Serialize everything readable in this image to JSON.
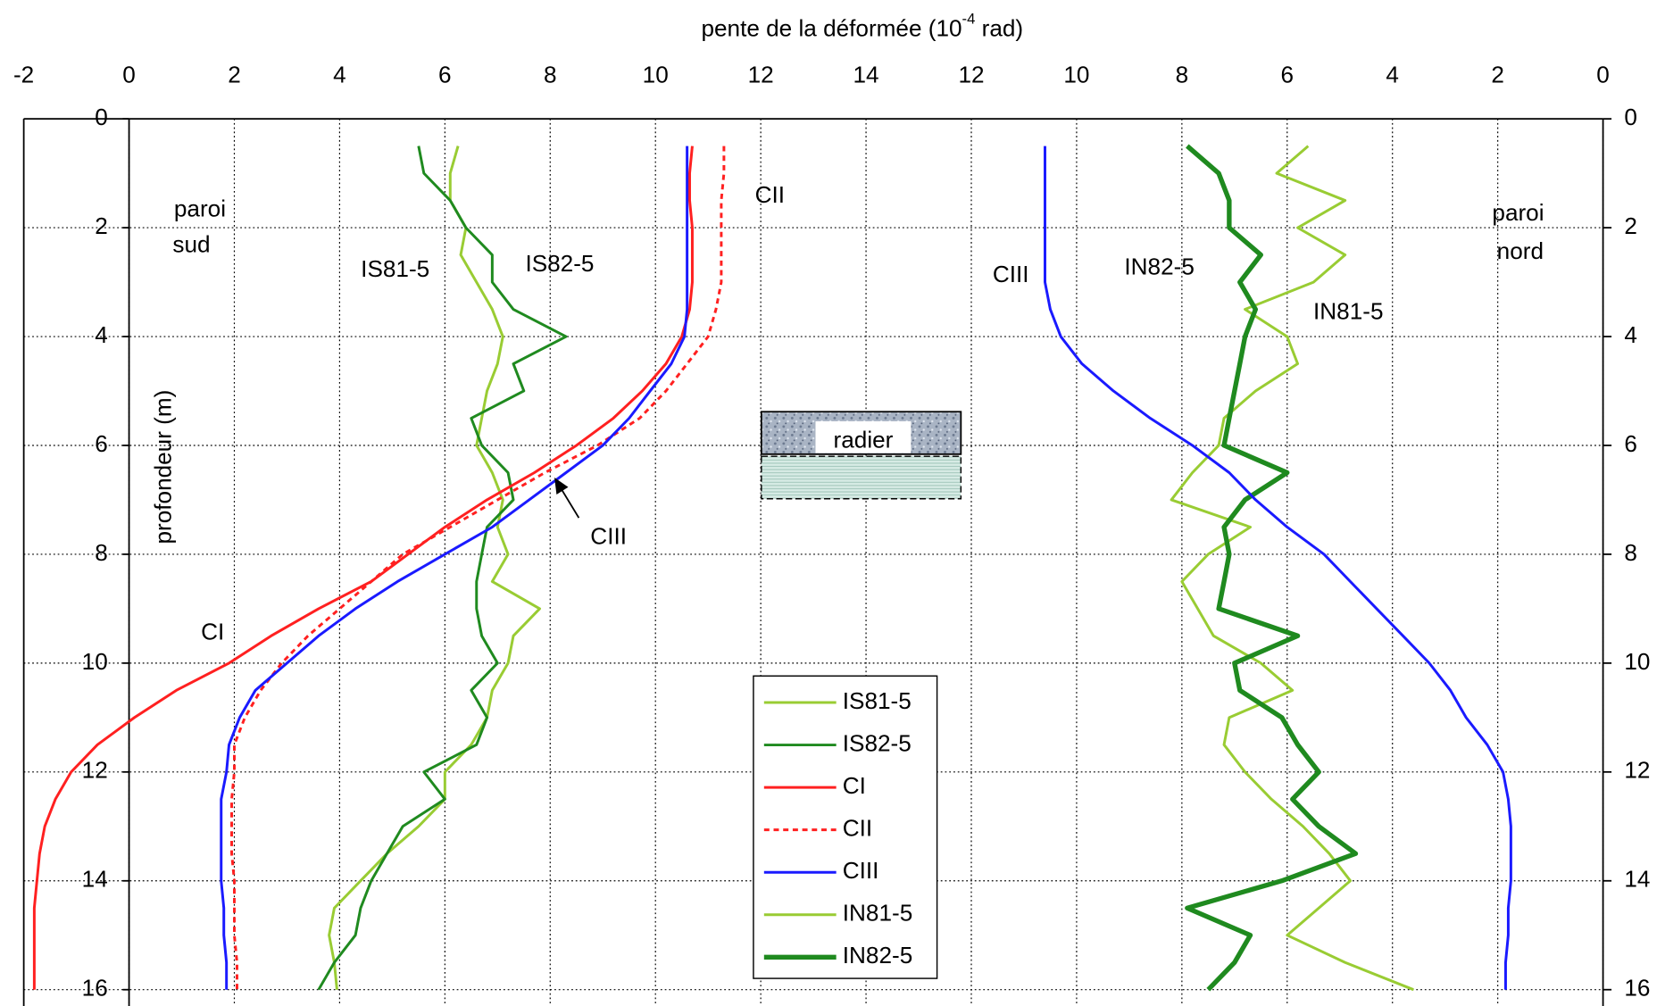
{
  "chart_data": {
    "type": "line",
    "title_parts": [
      "pente de la déformée (10",
      "-4",
      " rad)"
    ],
    "y_label": "profondeur (m)",
    "y": [
      0.5,
      1,
      1.5,
      2,
      2.5,
      3,
      3.5,
      4,
      4.5,
      5,
      5.5,
      6,
      6.5,
      7,
      7.5,
      8,
      8.5,
      9,
      9.5,
      10,
      10.5,
      11,
      11.5,
      12,
      12.5,
      13,
      13.5,
      14,
      14.5,
      15,
      15.5,
      16
    ],
    "ylim": [
      0,
      16.3
    ],
    "y_inverted": true,
    "yticks": [
      0,
      2,
      4,
      6,
      8,
      10,
      12,
      14,
      16
    ],
    "xlim": [
      -2,
      28
    ],
    "xticks": [
      -2,
      0,
      2,
      4,
      6,
      8,
      10,
      12,
      14
    ],
    "x2lim": [
      30,
      0
    ],
    "x2ticks": [
      12,
      10,
      8,
      6,
      4,
      2,
      0
    ],
    "grid": true,
    "legend": "bottom-center",
    "series": [
      {
        "name": "IS81-5",
        "color": "#99cc33",
        "axis": "x",
        "values": [
          6.25,
          6.1,
          6.1,
          6.4,
          6.3,
          6.6,
          6.9,
          7.1,
          7.0,
          6.8,
          6.7,
          6.6,
          6.9,
          7.1,
          7.0,
          7.2,
          6.9,
          7.8,
          7.3,
          7.2,
          6.9,
          6.8,
          6.5,
          6.0,
          6.0,
          5.5,
          4.9,
          4.4,
          3.9,
          3.8,
          3.9,
          3.95
        ]
      },
      {
        "name": "IS82-5",
        "color": "#1f8a1f",
        "axis": "x",
        "values": [
          5.5,
          5.6,
          6.1,
          6.4,
          6.9,
          6.9,
          7.3,
          8.3,
          7.3,
          7.5,
          6.5,
          6.7,
          7.2,
          7.3,
          6.8,
          6.7,
          6.6,
          6.6,
          6.7,
          7.0,
          6.5,
          6.8,
          6.6,
          5.6,
          6.0,
          5.2,
          4.9,
          4.6,
          4.4,
          4.3,
          3.9,
          3.6
        ]
      },
      {
        "name": "CI",
        "color": "#ff2020",
        "axis": "x",
        "values": [
          10.7,
          10.65,
          10.65,
          10.7,
          10.7,
          10.7,
          10.65,
          10.5,
          10.2,
          9.75,
          9.2,
          8.5,
          7.7,
          6.8,
          6.0,
          5.3,
          4.6,
          3.6,
          2.7,
          1.9,
          0.9,
          0.1,
          -0.6,
          -1.1,
          -1.4,
          -1.6,
          -1.7,
          -1.75,
          -1.8,
          -1.8,
          -1.8,
          -1.8
        ]
      },
      {
        "name": "CII",
        "color": "#ff2020",
        "axis": "x",
        "dashed": true,
        "values": [
          11.3,
          11.3,
          11.25,
          11.25,
          11.25,
          11.25,
          11.15,
          11.0,
          10.6,
          10.2,
          9.7,
          8.9,
          7.9,
          7.0,
          6.1,
          5.2,
          4.6,
          4.0,
          3.4,
          2.9,
          2.5,
          2.2,
          2.0,
          2.0,
          1.95,
          1.95,
          1.95,
          2.0,
          2.0,
          2.0,
          2.05,
          2.05
        ]
      },
      {
        "name": "CIII",
        "color": "#1a1aff",
        "axis": "x",
        "values": [
          10.6,
          10.6,
          10.6,
          10.6,
          10.6,
          10.6,
          10.6,
          10.55,
          10.3,
          9.9,
          9.5,
          9.0,
          8.3,
          7.6,
          6.9,
          6.0,
          5.1,
          4.3,
          3.6,
          3.0,
          2.4,
          2.1,
          1.9,
          1.85,
          1.75,
          1.75,
          1.75,
          1.75,
          1.8,
          1.8,
          1.85,
          1.85
        ]
      },
      {
        "name": "IN81-5",
        "color": "#99cc33",
        "axis": "x2",
        "values": [
          5.6,
          6.2,
          4.9,
          5.8,
          4.9,
          5.5,
          6.8,
          6.0,
          5.8,
          6.6,
          7.2,
          7.3,
          7.8,
          8.2,
          6.7,
          7.5,
          8.0,
          7.7,
          7.4,
          6.5,
          5.9,
          7.1,
          7.2,
          6.8,
          6.3,
          5.7,
          5.2,
          4.8,
          5.4,
          6.0,
          4.9,
          3.6
        ]
      },
      {
        "name": "IN82-5",
        "color": "#1f8a1f",
        "axis": "x2",
        "bold": true,
        "values": [
          7.9,
          7.3,
          7.1,
          7.1,
          6.5,
          6.9,
          6.6,
          6.8,
          6.9,
          7.0,
          7.1,
          7.2,
          6.0,
          6.8,
          7.2,
          7.1,
          7.2,
          7.3,
          5.8,
          7.0,
          6.9,
          6.1,
          5.8,
          5.4,
          5.9,
          5.4,
          4.7,
          6.1,
          7.9,
          6.7,
          7.0,
          7.5
        ]
      },
      {
        "name": "CIII",
        "color": "#1a1aff",
        "axis": "x2",
        "in_legend": false,
        "values": [
          10.6,
          10.6,
          10.6,
          10.6,
          10.6,
          10.6,
          10.5,
          10.3,
          9.9,
          9.3,
          8.6,
          7.8,
          7.1,
          6.6,
          6.0,
          5.3,
          4.8,
          4.3,
          3.8,
          3.3,
          2.9,
          2.6,
          2.2,
          1.9,
          1.8,
          1.75,
          1.75,
          1.75,
          1.8,
          1.8,
          1.85,
          1.85
        ]
      }
    ],
    "annotations": [
      "paroi",
      "sud",
      "IS81-5",
      "IS82-5",
      "CII",
      "CIII",
      "CI",
      "radier",
      "CIII",
      "IN82-5",
      "IN81-5",
      "paroi",
      "nord"
    ]
  }
}
